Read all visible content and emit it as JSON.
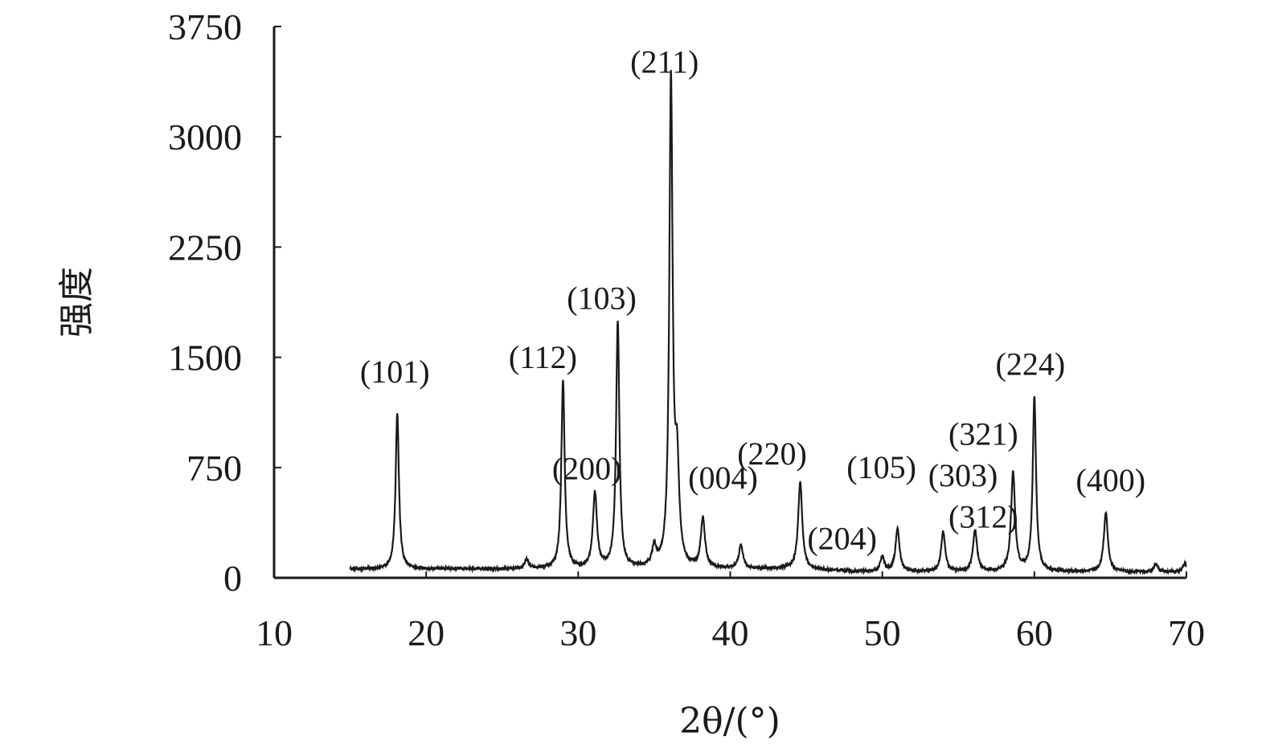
{
  "chart_data": {
    "type": "line",
    "xlabel": "2θ/(°)",
    "ylabel": "强度",
    "xlim": [
      10,
      70
    ],
    "ylim": [
      0,
      3750
    ],
    "x_ticks": [
      10,
      20,
      30,
      40,
      50,
      60,
      70
    ],
    "y_ticks": [
      0,
      750,
      1500,
      2250,
      3000,
      3750
    ],
    "baseline": 60,
    "data_start_x": 15,
    "data_end_x": 70,
    "line_color": "#1a1a1a",
    "peaks": [
      {
        "x": 18.1,
        "y": 1120,
        "label": "(101)"
      },
      {
        "x": 29.0,
        "y": 1340,
        "label": "(112)"
      },
      {
        "x": 31.1,
        "y": 570,
        "label": "(200)"
      },
      {
        "x": 32.6,
        "y": 1740,
        "label": "(103)"
      },
      {
        "x": 36.1,
        "y": 3360,
        "label": "(211)"
      },
      {
        "x": 36.5,
        "y": 700,
        "label": ""
      },
      {
        "x": 38.2,
        "y": 400,
        "label": "(004)"
      },
      {
        "x": 44.6,
        "y": 650,
        "label": "(220)"
      },
      {
        "x": 50.0,
        "y": 160,
        "label": "(204)"
      },
      {
        "x": 51.0,
        "y": 350,
        "label": "(105)"
      },
      {
        "x": 54.0,
        "y": 330,
        "label": "(312)"
      },
      {
        "x": 56.1,
        "y": 340,
        "label": "(303)"
      },
      {
        "x": 58.6,
        "y": 730,
        "label": "(321)"
      },
      {
        "x": 60.0,
        "y": 1250,
        "label": "(224)"
      },
      {
        "x": 64.7,
        "y": 460,
        "label": "(400)"
      }
    ],
    "minor_peaks": [
      {
        "x": 26.6,
        "y": 120
      },
      {
        "x": 35.0,
        "y": 190
      },
      {
        "x": 40.7,
        "y": 220
      },
      {
        "x": 68.0,
        "y": 110
      },
      {
        "x": 69.9,
        "y": 115
      }
    ]
  }
}
